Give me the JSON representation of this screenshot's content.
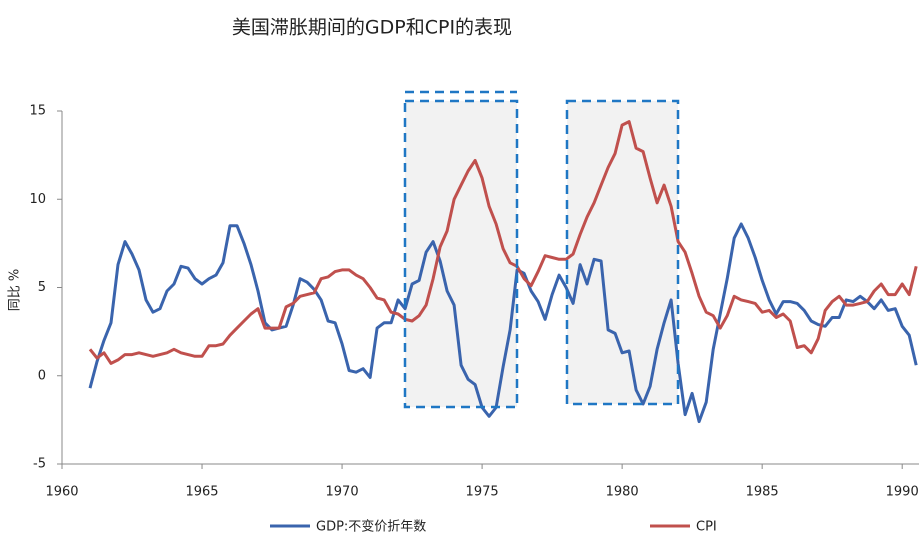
{
  "chart_data": {
    "type": "line",
    "title": "美国滞胀期间的GDP和CPI的表现",
    "y_label": "同比 %",
    "xlim": [
      1960,
      1990.6
    ],
    "xticks": [
      1960,
      1965,
      1970,
      1975,
      1980,
      1985,
      1990
    ],
    "ylim": [
      -5,
      15
    ],
    "yticks": [
      -5,
      0,
      5,
      10,
      15
    ],
    "x": [
      1961,
      1961.25,
      1961.5,
      1961.75,
      1962,
      1962.25,
      1962.5,
      1962.75,
      1963,
      1963.25,
      1963.5,
      1963.75,
      1964,
      1964.25,
      1964.5,
      1964.75,
      1965,
      1965.25,
      1965.5,
      1965.75,
      1966,
      1966.25,
      1966.5,
      1966.75,
      1967,
      1967.25,
      1967.5,
      1967.75,
      1968,
      1968.25,
      1968.5,
      1968.75,
      1969,
      1969.25,
      1969.5,
      1969.75,
      1970,
      1970.25,
      1970.5,
      1970.75,
      1971,
      1971.25,
      1971.5,
      1971.75,
      1972,
      1972.25,
      1972.5,
      1972.75,
      1973,
      1973.25,
      1973.5,
      1973.75,
      1974,
      1974.25,
      1974.5,
      1974.75,
      1975,
      1975.25,
      1975.5,
      1975.75,
      1976,
      1976.25,
      1976.5,
      1976.75,
      1977,
      1977.25,
      1977.5,
      1977.75,
      1978,
      1978.25,
      1978.5,
      1978.75,
      1979,
      1979.25,
      1979.5,
      1979.75,
      1980,
      1980.25,
      1980.5,
      1980.75,
      1981,
      1981.25,
      1981.5,
      1981.75,
      1982,
      1982.25,
      1982.5,
      1982.75,
      1983,
      1983.25,
      1983.5,
      1983.75,
      1984,
      1984.25,
      1984.5,
      1984.75,
      1985,
      1985.25,
      1985.5,
      1985.75,
      1986,
      1986.25,
      1986.5,
      1986.75,
      1987,
      1987.25,
      1987.5,
      1987.75,
      1988,
      1988.25,
      1988.5,
      1988.75,
      1989,
      1989.25,
      1989.5,
      1989.75,
      1990,
      1990.25,
      1990.5
    ],
    "series": [
      {
        "name": "GDP:不变价折年数",
        "color": "#3a64ad",
        "values": [
          -0.7,
          0.8,
          2.0,
          3.0,
          6.3,
          7.6,
          6.9,
          6.0,
          4.3,
          3.6,
          3.8,
          4.8,
          5.2,
          6.2,
          6.1,
          5.5,
          5.2,
          5.5,
          5.7,
          6.4,
          8.5,
          8.5,
          7.5,
          6.3,
          4.8,
          3.0,
          2.6,
          2.7,
          2.8,
          4.0,
          5.5,
          5.3,
          4.9,
          4.3,
          3.1,
          3.0,
          1.8,
          0.3,
          0.2,
          0.4,
          -0.1,
          2.7,
          3.0,
          3.0,
          4.3,
          3.8,
          5.2,
          5.4,
          7.0,
          7.6,
          6.5,
          4.8,
          4.0,
          0.6,
          -0.2,
          -0.5,
          -1.8,
          -2.3,
          -1.8,
          0.5,
          2.6,
          6.0,
          5.8,
          4.8,
          4.2,
          3.2,
          4.6,
          5.7,
          5.0,
          4.1,
          6.3,
          5.2,
          6.6,
          6.5,
          2.6,
          2.4,
          1.3,
          1.4,
          -0.8,
          -1.6,
          -0.6,
          1.5,
          3.0,
          4.3,
          0.7,
          -2.2,
          -1.0,
          -2.6,
          -1.5,
          1.5,
          3.5,
          5.5,
          7.8,
          8.6,
          7.8,
          6.7,
          5.4,
          4.3,
          3.5,
          4.2,
          4.2,
          4.1,
          3.7,
          3.1,
          2.9,
          2.8,
          3.3,
          3.3,
          4.3,
          4.2,
          4.5,
          4.2,
          3.8,
          4.3,
          3.7,
          3.8,
          2.8,
          2.3,
          0.6
        ]
      },
      {
        "name": "CPI",
        "color": "#c0504d",
        "values": [
          1.5,
          1.0,
          1.3,
          0.7,
          0.9,
          1.2,
          1.2,
          1.3,
          1.2,
          1.1,
          1.2,
          1.3,
          1.5,
          1.3,
          1.2,
          1.1,
          1.1,
          1.7,
          1.7,
          1.8,
          2.3,
          2.7,
          3.1,
          3.5,
          3.8,
          2.7,
          2.7,
          2.7,
          3.9,
          4.1,
          4.5,
          4.6,
          4.7,
          5.5,
          5.6,
          5.9,
          6.0,
          6.0,
          5.7,
          5.5,
          5.0,
          4.4,
          4.3,
          3.6,
          3.5,
          3.2,
          3.1,
          3.4,
          4.0,
          5.5,
          7.3,
          8.2,
          10.0,
          10.8,
          11.6,
          12.2,
          11.2,
          9.6,
          8.6,
          7.2,
          6.4,
          6.2,
          5.5,
          5.1,
          5.9,
          6.8,
          6.7,
          6.6,
          6.6,
          6.9,
          8.0,
          9.0,
          9.8,
          10.8,
          11.8,
          12.6,
          14.2,
          14.4,
          12.9,
          12.7,
          11.2,
          9.8,
          10.8,
          9.6,
          7.6,
          7.0,
          5.8,
          4.5,
          3.6,
          3.4,
          2.7,
          3.4,
          4.5,
          4.3,
          4.2,
          4.1,
          3.6,
          3.7,
          3.3,
          3.5,
          3.1,
          1.6,
          1.7,
          1.3,
          2.1,
          3.7,
          4.2,
          4.5,
          4.0,
          4.0,
          4.1,
          4.2,
          4.8,
          5.2,
          4.6,
          4.6,
          5.2,
          4.6,
          6.2
        ]
      }
    ]
  }
}
